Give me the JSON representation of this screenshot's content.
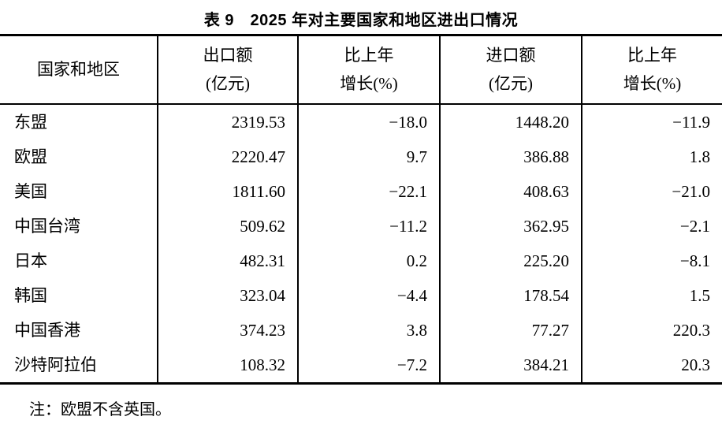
{
  "page": {
    "background": "#ffffff",
    "text_color": "#000000",
    "rule_color": "#000000"
  },
  "title": "表 9　2025 年对主要国家和地区进出口情况",
  "table": {
    "header": {
      "region": "国家和地区",
      "export_line1": "出口额",
      "export_line2": "(亿元)",
      "export_growth_line1": "比上年",
      "export_growth_line2": "增长(%)",
      "import_line1": "进口额",
      "import_line2": "(亿元)",
      "import_growth_line1": "比上年",
      "import_growth_line2": "增长(%)"
    },
    "rows": [
      {
        "region": "东盟",
        "export": "2319.53",
        "export_growth": "−18.0",
        "import": "1448.20",
        "import_growth": "−11.9"
      },
      {
        "region": "欧盟",
        "export": "2220.47",
        "export_growth": "9.7",
        "import": "386.88",
        "import_growth": "1.8"
      },
      {
        "region": "美国",
        "export": "1811.60",
        "export_growth": "−22.1",
        "import": "408.63",
        "import_growth": "−21.0"
      },
      {
        "region": "中国台湾",
        "export": "509.62",
        "export_growth": "−11.2",
        "import": "362.95",
        "import_growth": "−2.1"
      },
      {
        "region": "日本",
        "export": "482.31",
        "export_growth": "0.2",
        "import": "225.20",
        "import_growth": "−8.1"
      },
      {
        "region": "韩国",
        "export": "323.04",
        "export_growth": "−4.4",
        "import": "178.54",
        "import_growth": "1.5"
      },
      {
        "region": "中国香港",
        "export": "374.23",
        "export_growth": "3.8",
        "import": "77.27",
        "import_growth": "220.3"
      },
      {
        "region": "沙特阿拉伯",
        "export": "108.32",
        "export_growth": "−7.2",
        "import": "384.21",
        "import_growth": "20.3"
      }
    ]
  },
  "note": "注：欧盟不含英国。"
}
